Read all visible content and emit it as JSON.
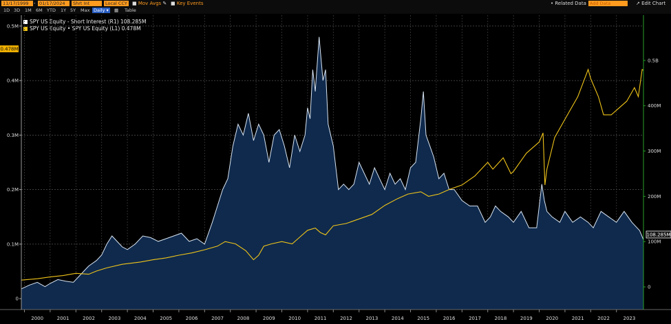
{
  "toolbar": {
    "start_date": "11/17/1999",
    "end_date": "01/17/2024",
    "field": "Shrt Int",
    "currency": "Local CCY",
    "mov_avgs": "Mov Avgs",
    "key_events": "Key Events",
    "related_data": "• Related Data •",
    "add_data": "Add Data",
    "edit_chart": "↗ Edit Chart",
    "periods": [
      "1D",
      "3D",
      "1M",
      "6M",
      "YTD",
      "1Y",
      "5Y",
      "Max"
    ],
    "frequency": "Daily ▾",
    "table": "Table"
  },
  "legend": [
    {
      "label": "SPY US Equity - Short Interest (R1) 108.285M",
      "color": "#ffffff"
    },
    {
      "label": "SPY US Equity • SPY US Equity (L1)   0.478M",
      "color": "#f0c419"
    }
  ],
  "colors": {
    "short_interest_fill": "#0f2a4d",
    "short_interest_line": "#d8e4f2",
    "price_line": "#f0c419",
    "badge": "#f0b000",
    "right_axis": "#2aa02a"
  },
  "chart_data": {
    "type": "area",
    "x_range": [
      1999.88,
      2024.05
    ],
    "x_ticks": [
      "2000",
      "2001",
      "2002",
      "2003",
      "2004",
      "2005",
      "2006",
      "2007",
      "2008",
      "2009",
      "2010",
      "2011",
      "2012",
      "2013",
      "2014",
      "2015",
      "2016",
      "2017",
      "2018",
      "2019",
      "2020",
      "2021",
      "2022",
      "2023"
    ],
    "left_axis": {
      "range": [
        -0.02,
        0.52
      ],
      "ticks": [
        0,
        0.1,
        0.2,
        0.3,
        0.4,
        0.5
      ],
      "tick_labels": [
        "0",
        "0.1M",
        "0.2M",
        "0.3M",
        "0.4M",
        "0.5M"
      ],
      "last_value_label": "0.478M"
    },
    "right_axis": {
      "range": [
        -0.05,
        0.6
      ],
      "ticks": [
        0,
        0.1,
        0.2,
        0.3,
        0.4,
        0.5
      ],
      "tick_labels": [
        "0",
        "100M",
        "200M",
        "300M",
        "400M",
        "0.5B"
      ],
      "last_value_label": "108.285M"
    },
    "series": [
      {
        "name": "SPY US Equity - Short Interest (R1)",
        "axis": "left",
        "style": "area",
        "x": [
          1999.88,
          2000.2,
          2000.5,
          2000.8,
          2001.0,
          2001.3,
          2001.6,
          2001.9,
          2002.2,
          2002.5,
          2002.8,
          2003.0,
          2003.2,
          2003.4,
          2003.6,
          2003.8,
          2004.0,
          2004.3,
          2004.6,
          2004.9,
          2005.2,
          2005.5,
          2005.8,
          2006.1,
          2006.4,
          2006.7,
          2007.0,
          2007.3,
          2007.5,
          2007.7,
          2007.9,
          2008.1,
          2008.3,
          2008.5,
          2008.7,
          2008.9,
          2009.1,
          2009.3,
          2009.5,
          2009.7,
          2009.9,
          2010.1,
          2010.3,
          2010.5,
          2010.7,
          2010.9,
          2011.0,
          2011.1,
          2011.2,
          2011.3,
          2011.45,
          2011.6,
          2011.7,
          2011.8,
          2012.0,
          2012.2,
          2012.4,
          2012.6,
          2012.8,
          2013.0,
          2013.2,
          2013.4,
          2013.6,
          2013.8,
          2014.0,
          2014.2,
          2014.4,
          2014.6,
          2014.8,
          2015.0,
          2015.2,
          2015.4,
          2015.5,
          2015.6,
          2015.75,
          2015.9,
          2016.1,
          2016.3,
          2016.5,
          2016.7,
          2017.0,
          2017.3,
          2017.6,
          2017.9,
          2018.1,
          2018.3,
          2018.5,
          2018.8,
          2019.0,
          2019.3,
          2019.6,
          2019.9,
          2020.1,
          2020.2,
          2020.3,
          2020.5,
          2020.8,
          2021.0,
          2021.3,
          2021.6,
          2021.9,
          2022.1,
          2022.4,
          2022.7,
          2023.0,
          2023.3,
          2023.6,
          2023.9,
          2024.05
        ],
        "values": [
          0.018,
          0.025,
          0.03,
          0.022,
          0.028,
          0.035,
          0.032,
          0.03,
          0.045,
          0.06,
          0.07,
          0.08,
          0.1,
          0.115,
          0.105,
          0.095,
          0.09,
          0.1,
          0.115,
          0.112,
          0.105,
          0.11,
          0.115,
          0.12,
          0.105,
          0.11,
          0.1,
          0.14,
          0.17,
          0.2,
          0.22,
          0.28,
          0.32,
          0.3,
          0.34,
          0.29,
          0.32,
          0.3,
          0.25,
          0.3,
          0.31,
          0.28,
          0.24,
          0.3,
          0.27,
          0.3,
          0.35,
          0.33,
          0.42,
          0.38,
          0.48,
          0.4,
          0.42,
          0.32,
          0.28,
          0.2,
          0.21,
          0.2,
          0.21,
          0.25,
          0.23,
          0.21,
          0.24,
          0.22,
          0.2,
          0.23,
          0.21,
          0.22,
          0.2,
          0.24,
          0.25,
          0.33,
          0.38,
          0.3,
          0.28,
          0.26,
          0.22,
          0.23,
          0.2,
          0.2,
          0.18,
          0.17,
          0.17,
          0.14,
          0.15,
          0.17,
          0.16,
          0.15,
          0.14,
          0.16,
          0.13,
          0.13,
          0.21,
          0.18,
          0.16,
          0.15,
          0.14,
          0.16,
          0.14,
          0.15,
          0.14,
          0.13,
          0.16,
          0.15,
          0.14,
          0.16,
          0.14,
          0.125,
          0.108
        ]
      },
      {
        "name": "SPY US Equity • SPY US Equity (L1)",
        "axis": "right",
        "style": "line",
        "x": [
          1999.88,
          2000.5,
          2001.0,
          2001.5,
          2002.0,
          2002.5,
          2002.8,
          2003.2,
          2003.8,
          2004.5,
          2005.0,
          2005.5,
          2006.0,
          2006.5,
          2007.0,
          2007.5,
          2007.8,
          2008.2,
          2008.6,
          2008.9,
          2009.1,
          2009.3,
          2009.6,
          2010.0,
          2010.4,
          2010.7,
          2011.0,
          2011.3,
          2011.5,
          2011.7,
          2012.0,
          2012.5,
          2013.0,
          2013.5,
          2014.0,
          2014.5,
          2014.9,
          2015.4,
          2015.7,
          2016.1,
          2016.5,
          2017.0,
          2017.5,
          2018.0,
          2018.2,
          2018.6,
          2018.9,
          2019.0,
          2019.5,
          2020.0,
          2020.15,
          2020.22,
          2020.3,
          2020.6,
          2021.0,
          2021.5,
          2021.9,
          2022.0,
          2022.3,
          2022.5,
          2022.8,
          2023.0,
          2023.4,
          2023.7,
          2023.85,
          2024.0,
          2024.05
        ],
        "values": [
          0.015,
          0.018,
          0.022,
          0.025,
          0.03,
          0.028,
          0.035,
          0.042,
          0.05,
          0.055,
          0.06,
          0.064,
          0.07,
          0.075,
          0.082,
          0.09,
          0.1,
          0.095,
          0.08,
          0.06,
          0.07,
          0.09,
          0.095,
          0.1,
          0.095,
          0.11,
          0.125,
          0.13,
          0.12,
          0.115,
          0.135,
          0.14,
          0.15,
          0.16,
          0.18,
          0.195,
          0.205,
          0.21,
          0.2,
          0.205,
          0.215,
          0.225,
          0.245,
          0.275,
          0.26,
          0.285,
          0.25,
          0.255,
          0.295,
          0.32,
          0.34,
          0.225,
          0.26,
          0.33,
          0.37,
          0.42,
          0.48,
          0.46,
          0.42,
          0.38,
          0.38,
          0.39,
          0.41,
          0.44,
          0.42,
          0.48,
          0.478
        ]
      }
    ]
  }
}
